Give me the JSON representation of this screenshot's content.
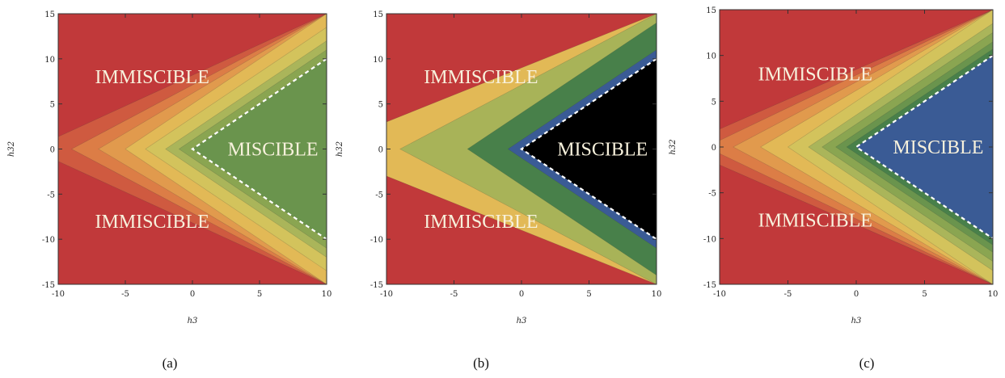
{
  "chart_data": [
    {
      "type": "contour",
      "caption": "(a)",
      "xlabel": "h3",
      "ylabel": "h32",
      "xlim": [
        -10,
        10
      ],
      "ylim": [
        -15,
        15
      ],
      "x_ticks": [
        -10,
        -5,
        0,
        5,
        10
      ],
      "y_ticks": [
        -15,
        -10,
        -5,
        0,
        5,
        10,
        15
      ],
      "levels": [
        -12,
        -9,
        -7,
        -5,
        -3.5,
        -2,
        -1,
        0
      ],
      "colors": [
        "#c1393a",
        "#cf5a40",
        "#dc7d46",
        "#e19a4d",
        "#e2b956",
        "#d3c35c",
        "#aab55a",
        "#8aa551",
        "#6a944d",
        "#48804a",
        "#3a5b95"
      ],
      "boundary": {
        "vertex": [
          0,
          0
        ],
        "slope": 1,
        "style": "dashed",
        "color": "#ffffff"
      },
      "annotations": [
        {
          "text": "IMMISCIBLE",
          "x": -3,
          "y": 8
        },
        {
          "text": "MISCIBLE",
          "x": 6,
          "y": 0
        },
        {
          "text": "IMMISCIBLE",
          "x": -3,
          "y": -8
        }
      ]
    },
    {
      "type": "contour",
      "caption": "(b)",
      "xlabel": "h3",
      "ylabel": "h32",
      "xlim": [
        -10,
        10
      ],
      "ylim": [
        -15,
        15
      ],
      "x_ticks": [
        -10,
        -5,
        0,
        5,
        10
      ],
      "y_ticks": [
        -15,
        -10,
        -5,
        0,
        5,
        10,
        15
      ],
      "levels": [
        -15,
        -9,
        -4,
        -1,
        0
      ],
      "colors": [
        "#c1393a",
        "#e2b956",
        "#a8b358",
        "#48804a",
        "#3a5b95"
      ],
      "boundary": {
        "vertex": [
          0,
          0
        ],
        "slope": 1,
        "style": "dashed",
        "color": "#ffffff"
      },
      "annotations": [
        {
          "text": "IMMISCIBLE",
          "x": -3,
          "y": 8
        },
        {
          "text": "MISCIBLE",
          "x": 6,
          "y": 0
        },
        {
          "text": "IMMISCIBLE",
          "x": -3,
          "y": -8
        }
      ]
    },
    {
      "type": "contour",
      "caption": "(c)",
      "xlabel": "h3",
      "ylabel": "h32",
      "xlim": [
        -10,
        10
      ],
      "ylim": [
        -15,
        15
      ],
      "x_ticks": [
        -10,
        -5,
        0,
        5,
        10
      ],
      "y_ticks": [
        -15,
        -10,
        -5,
        0,
        5,
        10,
        15
      ],
      "levels": [
        -13,
        -11,
        -9,
        -7,
        -5,
        -3.5,
        -2.5,
        -1.5,
        -0.7,
        0
      ],
      "colors": [
        "#c1393a",
        "#cf5a40",
        "#dc7d46",
        "#e19a4d",
        "#e2b956",
        "#d3c35c",
        "#aab55a",
        "#8aa551",
        "#6a944d",
        "#48804a",
        "#3a5b95"
      ],
      "boundary": {
        "vertex": [
          0,
          0
        ],
        "slope": 1,
        "style": "dashed",
        "color": "#ffffff"
      },
      "annotations": [
        {
          "text": "IMMISCIBLE",
          "x": -3,
          "y": 8
        },
        {
          "text": "MISCIBLE",
          "x": 6,
          "y": 0
        },
        {
          "text": "IMMISCIBLE",
          "x": -3,
          "y": -8
        }
      ]
    }
  ]
}
